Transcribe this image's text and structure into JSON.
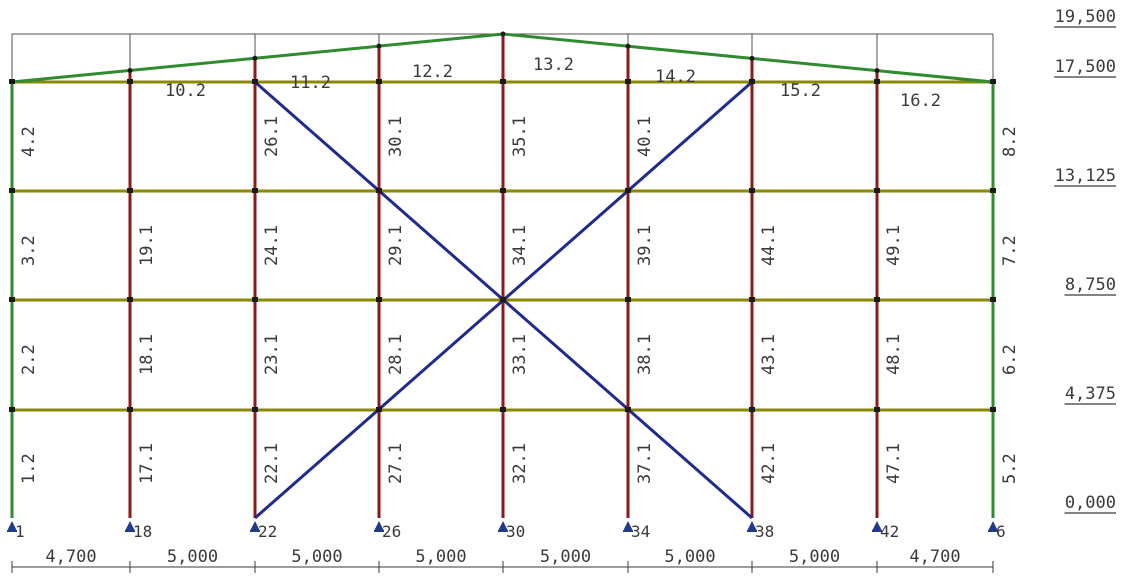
{
  "colors": {
    "column": "#8b1a1a",
    "edge_column": "#2e8b2e",
    "beam": "#8a8a00",
    "rafter": "#2e8b2e",
    "brace": "#1f2b8f",
    "outline": "#505050",
    "node": "#1a1a1a",
    "support": "#1f3a8f",
    "text": "#3a3a3a"
  },
  "levels": [
    {
      "label": "0,000"
    },
    {
      "label": "4,375"
    },
    {
      "label": "8,750"
    },
    {
      "label": "13,125"
    },
    {
      "label": "17,500"
    },
    {
      "label": "19,500"
    }
  ],
  "spans": [
    "4,700",
    "5,000",
    "5,000",
    "5,000",
    "5,000",
    "5,000",
    "5,000",
    "4,700"
  ],
  "base_nodes": [
    "1",
    "18",
    "22",
    "26",
    "30",
    "34",
    "38",
    "42",
    "6"
  ],
  "rafter_labels": [
    "10.2",
    "11.2",
    "12.2",
    "13.2",
    "14.2",
    "15.2",
    "16.2"
  ],
  "column_labels": [
    [
      "1.2",
      "2.2",
      "3.2",
      "4.2"
    ],
    [
      "17.1",
      "18.1",
      "19.1",
      ""
    ],
    [
      "22.1",
      "23.1",
      "24.1",
      "26.1"
    ],
    [
      "27.1",
      "28.1",
      "29.1",
      "30.1"
    ],
    [
      "32.1",
      "33.1",
      "34.1",
      "35.1"
    ],
    [
      "37.1",
      "38.1",
      "39.1",
      "40.1"
    ],
    [
      "42.1",
      "43.1",
      "44.1",
      ""
    ],
    [
      "47.1",
      "48.1",
      "49.1",
      ""
    ],
    [
      "5.2",
      "6.2",
      "7.2",
      "8.2"
    ]
  ]
}
